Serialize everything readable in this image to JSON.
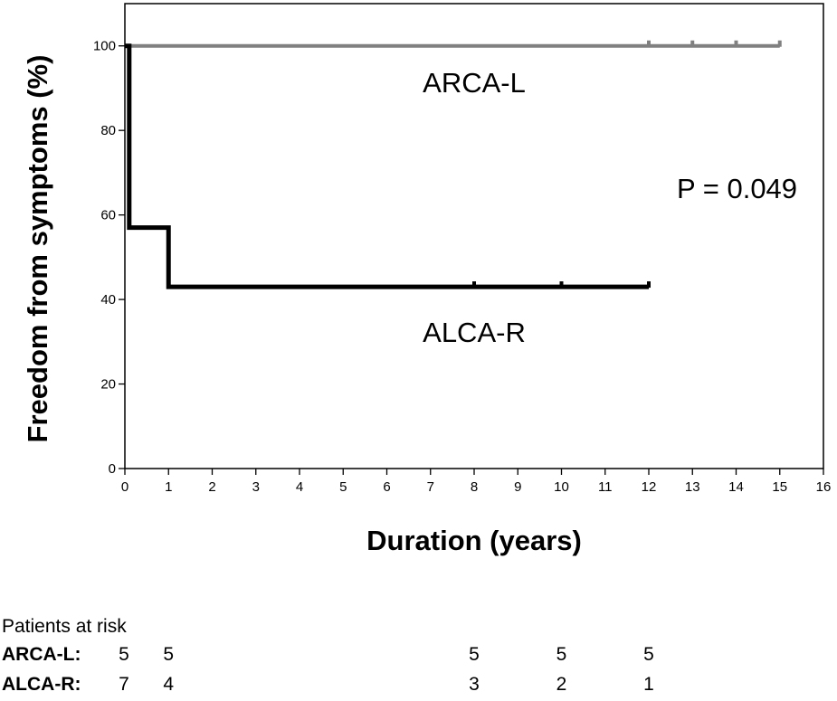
{
  "chart_data": {
    "type": "line",
    "subtype": "kaplan-meier step",
    "xlabel": "Duration (years)",
    "ylabel": "Freedom from symptoms (%)",
    "xlim": [
      0,
      16
    ],
    "ylim": [
      0,
      110
    ],
    "x_ticks": [
      0,
      1,
      2,
      3,
      4,
      5,
      6,
      7,
      8,
      9,
      10,
      11,
      12,
      13,
      14,
      15,
      16
    ],
    "y_ticks": [
      0,
      20,
      40,
      60,
      80,
      100
    ],
    "grid": false,
    "series": [
      {
        "name": "ARCA-L",
        "color": "#808080",
        "steps": [
          [
            0,
            100
          ],
          [
            15,
            100
          ]
        ],
        "censor_marks": [
          12,
          13,
          14,
          15
        ]
      },
      {
        "name": "ALCA-R",
        "color": "#000000",
        "steps": [
          [
            0,
            100
          ],
          [
            0.1,
            57
          ],
          [
            1,
            43
          ],
          [
            12,
            43
          ]
        ],
        "censor_marks": [
          8,
          10,
          12
        ]
      }
    ],
    "annotations": [
      {
        "text": "ARCA-L",
        "x": 8.0,
        "y": 89
      },
      {
        "text": "ALCA-R",
        "x": 8.0,
        "y": 30
      },
      {
        "text": "P = 0.049",
        "x": 15.4,
        "y": 64
      }
    ]
  },
  "risk_table": {
    "title": "Patients at risk",
    "rows": [
      {
        "label": "ARCA-L:",
        "values": [
          {
            "x": 0,
            "v": "5"
          },
          {
            "x": 1,
            "v": "5"
          },
          {
            "x": 8,
            "v": "5"
          },
          {
            "x": 10,
            "v": "5"
          },
          {
            "x": 12,
            "v": "5"
          }
        ]
      },
      {
        "label": "ALCA-R:",
        "values": [
          {
            "x": 0,
            "v": "7"
          },
          {
            "x": 1,
            "v": "4"
          },
          {
            "x": 8,
            "v": "3"
          },
          {
            "x": 10,
            "v": "2"
          },
          {
            "x": 12,
            "v": "1"
          }
        ]
      }
    ]
  }
}
